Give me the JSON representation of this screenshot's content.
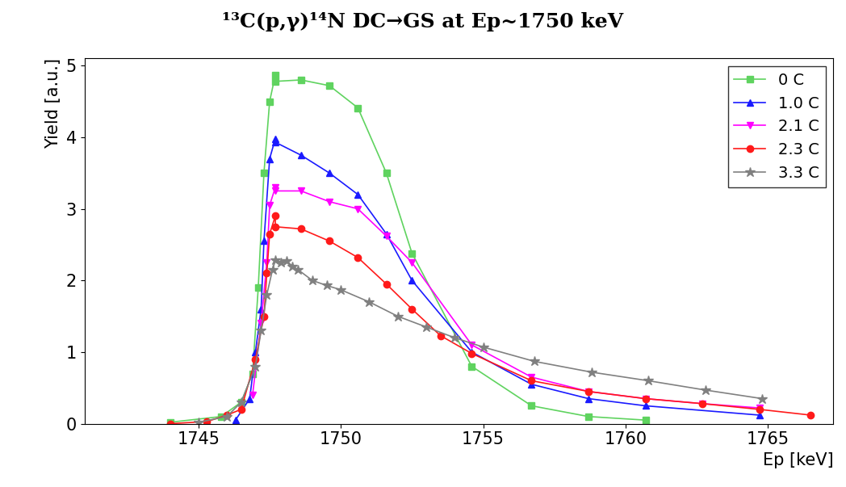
{
  "chart_data": {
    "type": "line",
    "title": "¹³C(p,γ)¹⁴N DC→GS at Ep~1750 keV",
    "x_label": "Ep [keV]",
    "y_label": "Yield [a.u.]",
    "xlim": [
      1741,
      1767.3
    ],
    "ylim": [
      0,
      5.1
    ],
    "xticks": [
      1745,
      1750,
      1755,
      1760,
      1765
    ],
    "yticks": [
      0,
      1,
      2,
      3,
      4,
      5
    ],
    "grid": false,
    "legend": "upper right",
    "series": [
      {
        "name": "0 C",
        "color": "#5fd35f",
        "marker": "square",
        "line_style": "solid",
        "x": [
          1744.0,
          1745.8,
          1746.5,
          1746.9,
          1747.1,
          1747.3,
          1747.5,
          1747.7,
          1747.7,
          1748.6,
          1749.6,
          1750.6,
          1751.6,
          1752.5,
          1754.6,
          1756.7,
          1758.7,
          1760.7
        ],
        "values": [
          0.02,
          0.1,
          0.3,
          0.7,
          1.9,
          3.5,
          4.5,
          4.87,
          4.78,
          4.8,
          4.72,
          4.41,
          3.5,
          2.38,
          0.8,
          0.25,
          0.1,
          0.05
        ]
      },
      {
        "name": "1.0 C",
        "color": "#1a1aff",
        "marker": "triangle_up",
        "line_style": "solid",
        "x": [
          1746.3,
          1746.8,
          1747.0,
          1747.2,
          1747.3,
          1747.5,
          1747.7,
          1747.7,
          1748.6,
          1749.6,
          1750.6,
          1751.6,
          1752.5,
          1754.6,
          1756.7,
          1758.7,
          1760.7,
          1764.7
        ],
        "values": [
          0.05,
          0.35,
          1.0,
          1.6,
          2.55,
          3.7,
          3.98,
          3.93,
          3.75,
          3.5,
          3.2,
          2.65,
          2.0,
          1.0,
          0.55,
          0.35,
          0.25,
          0.12
        ]
      },
      {
        "name": "2.1 C",
        "color": "#ff00ff",
        "marker": "triangle_down",
        "line_style": "solid",
        "x": [
          1746.9,
          1747.2,
          1747.4,
          1747.5,
          1747.7,
          1747.7,
          1748.6,
          1749.6,
          1750.6,
          1751.6,
          1752.5,
          1754.6,
          1756.7,
          1758.7,
          1760.7,
          1762.7,
          1764.7
        ],
        "values": [
          0.4,
          1.4,
          2.25,
          3.05,
          3.3,
          3.25,
          3.25,
          3.1,
          3.0,
          2.62,
          2.25,
          1.1,
          0.65,
          0.45,
          0.35,
          0.28,
          0.22
        ]
      },
      {
        "name": "2.3 C",
        "color": "#ff1a1a",
        "marker": "circle",
        "line_style": "solid",
        "x": [
          1744.0,
          1745.3,
          1746.0,
          1746.5,
          1747.0,
          1747.3,
          1747.4,
          1747.5,
          1747.7,
          1747.7,
          1748.6,
          1749.6,
          1750.6,
          1751.6,
          1752.5,
          1753.5,
          1754.6,
          1756.7,
          1758.7,
          1760.7,
          1762.7,
          1764.7,
          1766.5
        ],
        "values": [
          0.0,
          0.03,
          0.12,
          0.2,
          0.9,
          1.5,
          2.1,
          2.65,
          2.9,
          2.75,
          2.72,
          2.55,
          2.32,
          1.95,
          1.6,
          1.23,
          0.98,
          0.6,
          0.45,
          0.35,
          0.28,
          0.2,
          0.12
        ]
      },
      {
        "name": "3.3 C",
        "color": "#808080",
        "marker": "star",
        "line_style": "solid",
        "x": [
          1745.0,
          1746.0,
          1746.5,
          1747.0,
          1747.2,
          1747.4,
          1747.6,
          1747.7,
          1747.9,
          1748.1,
          1748.3,
          1748.5,
          1749.0,
          1749.5,
          1750.0,
          1751.0,
          1752.0,
          1753.0,
          1754.0,
          1755.0,
          1756.8,
          1758.8,
          1760.8,
          1762.8,
          1764.8
        ],
        "values": [
          0.02,
          0.1,
          0.3,
          0.8,
          1.3,
          1.8,
          2.15,
          2.28,
          2.25,
          2.27,
          2.2,
          2.15,
          2.0,
          1.93,
          1.87,
          1.7,
          1.5,
          1.35,
          1.2,
          1.07,
          0.87,
          0.72,
          0.6,
          0.47,
          0.35
        ]
      }
    ]
  }
}
